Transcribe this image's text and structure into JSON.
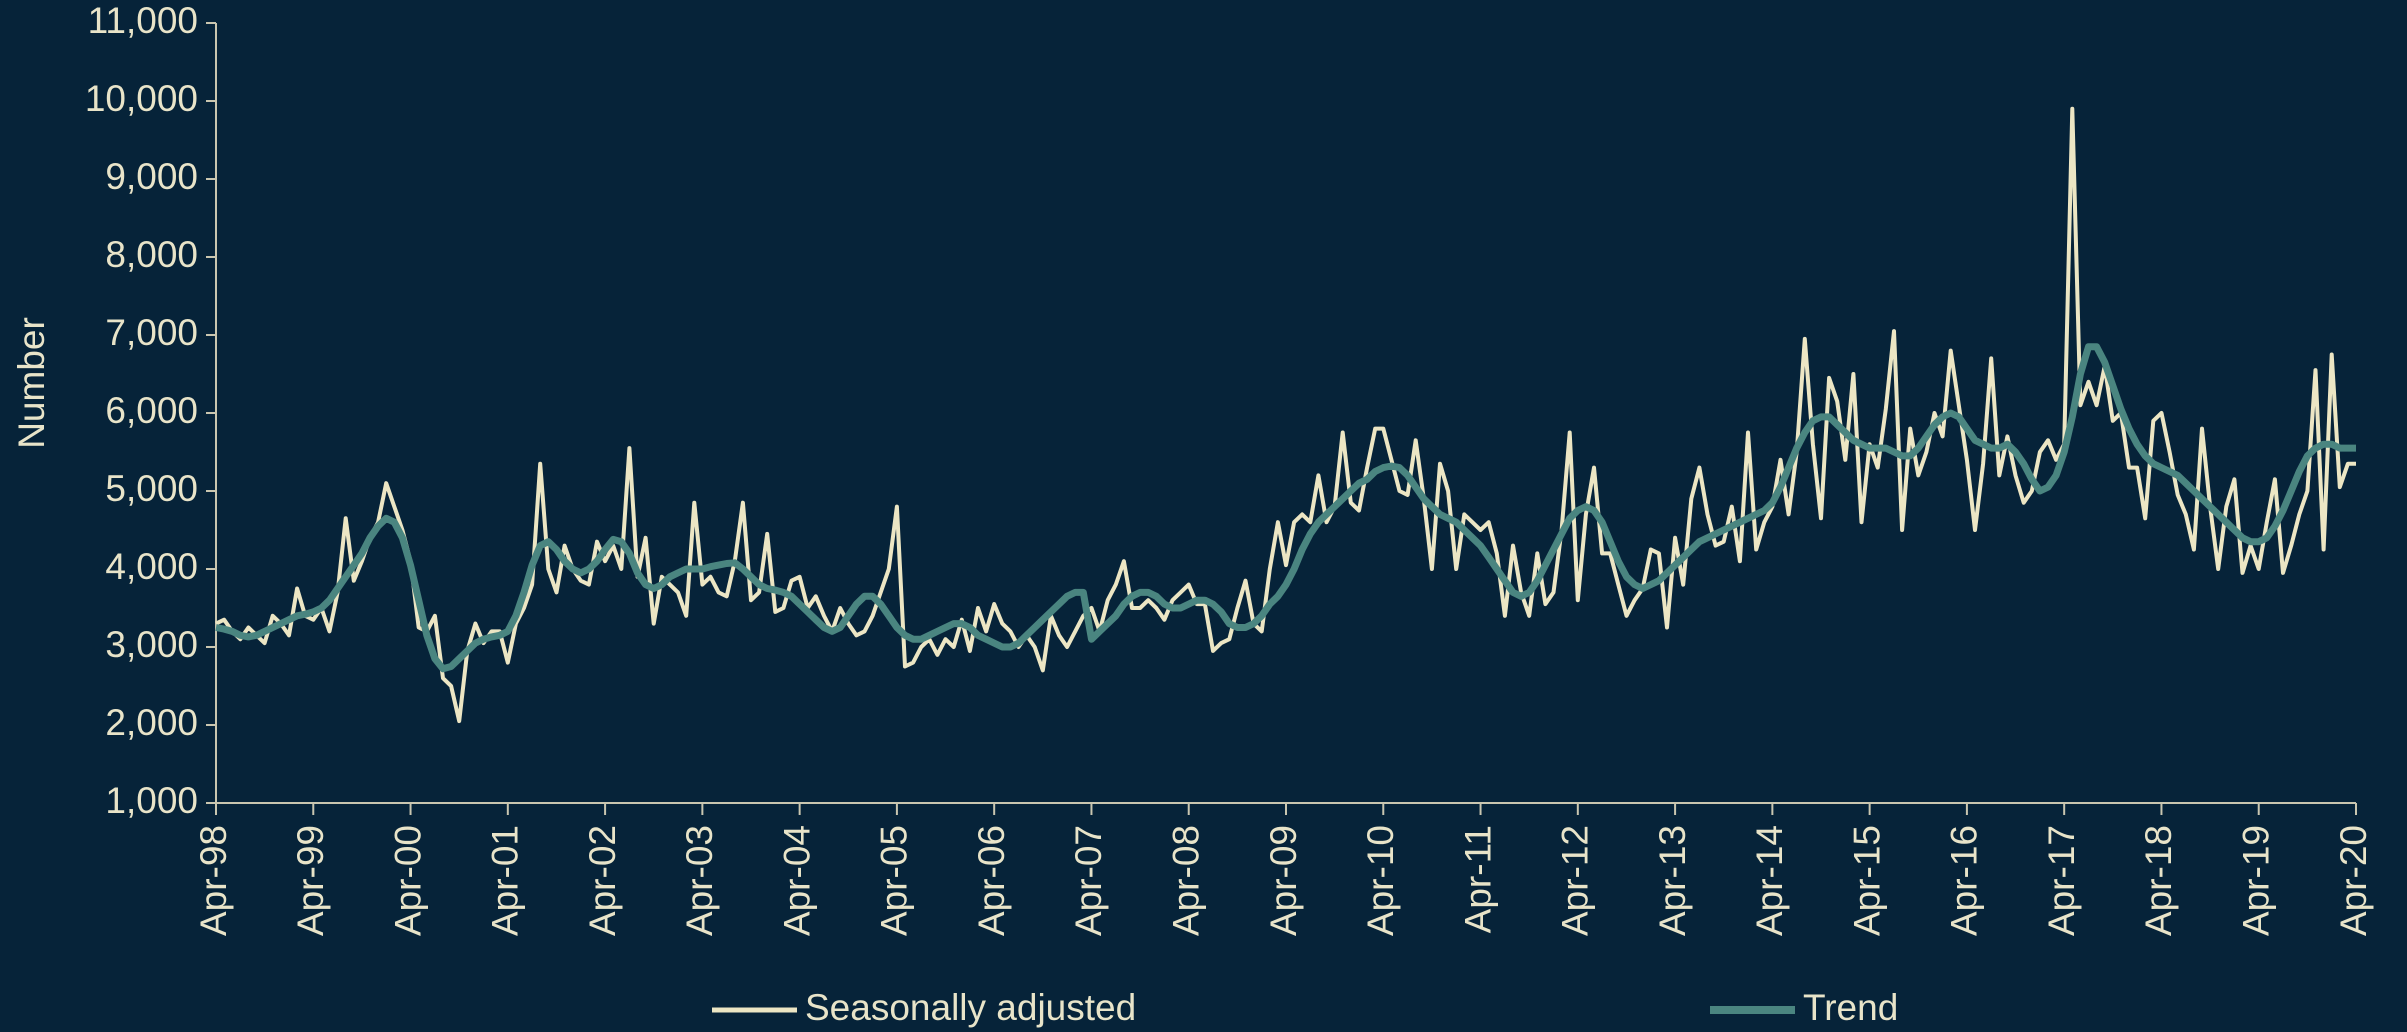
{
  "chart_data": {
    "type": "line",
    "y_label": "Number",
    "categories": [
      "Apr-98",
      null,
      null,
      null,
      null,
      null,
      null,
      null,
      null,
      null,
      null,
      null,
      "Apr-99",
      null,
      null,
      null,
      null,
      null,
      null,
      null,
      null,
      null,
      null,
      null,
      "Apr-00",
      null,
      null,
      null,
      null,
      null,
      null,
      null,
      null,
      null,
      null,
      null,
      "Apr-01",
      null,
      null,
      null,
      null,
      null,
      null,
      null,
      null,
      null,
      null,
      null,
      "Apr-02",
      null,
      null,
      null,
      null,
      null,
      null,
      null,
      null,
      null,
      null,
      null,
      "Apr-03",
      null,
      null,
      null,
      null,
      null,
      null,
      null,
      null,
      null,
      null,
      null,
      "Apr-04",
      null,
      null,
      null,
      null,
      null,
      null,
      null,
      null,
      null,
      null,
      null,
      "Apr-05",
      null,
      null,
      null,
      null,
      null,
      null,
      null,
      null,
      null,
      null,
      null,
      "Apr-06",
      null,
      null,
      null,
      null,
      null,
      null,
      null,
      null,
      null,
      null,
      null,
      "Apr-07",
      null,
      null,
      null,
      null,
      null,
      null,
      null,
      null,
      null,
      null,
      null,
      "Apr-08",
      null,
      null,
      null,
      null,
      null,
      null,
      null,
      null,
      null,
      null,
      null,
      "Apr-09",
      null,
      null,
      null,
      null,
      null,
      null,
      null,
      null,
      null,
      null,
      null,
      "Apr-10",
      null,
      null,
      null,
      null,
      null,
      null,
      null,
      null,
      null,
      null,
      null,
      "Apr-11",
      null,
      null,
      null,
      null,
      null,
      null,
      null,
      null,
      null,
      null,
      null,
      "Apr-12",
      null,
      null,
      null,
      null,
      null,
      null,
      null,
      null,
      null,
      null,
      null,
      "Apr-13",
      null,
      null,
      null,
      null,
      null,
      null,
      null,
      null,
      null,
      null,
      null,
      "Apr-14",
      null,
      null,
      null,
      null,
      null,
      null,
      null,
      null,
      null,
      null,
      null,
      "Apr-15",
      null,
      null,
      null,
      null,
      null,
      null,
      null,
      null,
      null,
      null,
      null,
      "Apr-16",
      null,
      null,
      null,
      null,
      null,
      null,
      null,
      null,
      null,
      null,
      null,
      "Apr-17",
      null,
      null,
      null,
      null,
      null,
      null,
      null,
      null,
      null,
      null,
      null,
      "Apr-18",
      null,
      null,
      null,
      null,
      null,
      null,
      null,
      null,
      null,
      null,
      null,
      "Apr-19",
      null,
      null,
      null,
      null,
      null,
      null,
      null,
      null,
      null,
      null,
      null,
      "Apr-20"
    ],
    "series": [
      {
        "name": "Seasonally adjusted",
        "color": "#ece6c4",
        "values": [
          3300,
          3350,
          3200,
          3100,
          3250,
          3150,
          3050,
          3400,
          3300,
          3150,
          3750,
          3400,
          3350,
          3500,
          3200,
          3700,
          4650,
          3850,
          4100,
          4400,
          4600,
          5100,
          4800,
          4500,
          4100,
          3250,
          3200,
          3400,
          2600,
          2500,
          2050,
          2950,
          3300,
          3050,
          3200,
          3200,
          2800,
          3300,
          3500,
          3800,
          5350,
          4000,
          3700,
          4300,
          4000,
          3850,
          3800,
          4350,
          4100,
          4300,
          4000,
          5550,
          3900,
          4400,
          3300,
          3900,
          3800,
          3700,
          3400,
          4850,
          3800,
          3900,
          3700,
          3650,
          4100,
          4850,
          3600,
          3700,
          4450,
          3450,
          3500,
          3850,
          3900,
          3500,
          3650,
          3400,
          3200,
          3500,
          3300,
          3150,
          3200,
          3400,
          3700,
          4000,
          4800,
          2750,
          2800,
          3000,
          3100,
          2900,
          3100,
          3000,
          3350,
          2950,
          3500,
          3200,
          3550,
          3300,
          3200,
          3000,
          3150,
          3000,
          2700,
          3400,
          3150,
          3000,
          3200,
          3400,
          3500,
          3200,
          3600,
          3800,
          4100,
          3500,
          3500,
          3600,
          3500,
          3350,
          3600,
          3700,
          3800,
          3550,
          3550,
          2950,
          3050,
          3100,
          3500,
          3850,
          3300,
          3200,
          4000,
          4600,
          4050,
          4600,
          4700,
          4600,
          5200,
          4600,
          4800,
          5750,
          4850,
          4750,
          5300,
          5800,
          5800,
          5400,
          5000,
          4950,
          5650,
          4900,
          4000,
          5350,
          5000,
          4000,
          4700,
          4600,
          4500,
          4600,
          4200,
          3400,
          4300,
          3700,
          3400,
          4200,
          3550,
          3700,
          4500,
          5750,
          3600,
          4700,
          5300,
          4200,
          4200,
          3800,
          3400,
          3600,
          3750,
          4250,
          4200,
          3250,
          4400,
          3800,
          4900,
          5300,
          4700,
          4300,
          4350,
          4800,
          4100,
          5750,
          4250,
          4600,
          4800,
          5400,
          4700,
          5500,
          6950,
          5600,
          4650,
          6450,
          6150,
          5400,
          6500,
          4600,
          5600,
          5300,
          6050,
          7050,
          4500,
          5800,
          5200,
          5500,
          6000,
          5700,
          6800,
          6100,
          5400,
          4500,
          5350,
          6700,
          5200,
          5700,
          5200,
          4850,
          5000,
          5500,
          5650,
          5400,
          5600,
          9900,
          6100,
          6400,
          6100,
          6600,
          5900,
          6000,
          5300,
          5300,
          4650,
          5900,
          6000,
          5500,
          4950,
          4700,
          4250,
          5800,
          4800,
          4000,
          4800,
          5150,
          3950,
          4300,
          4000,
          4600,
          5150,
          3950,
          4300,
          4700,
          5000,
          6550,
          4250,
          6750,
          5050,
          5350,
          5350
        ]
      },
      {
        "name": "Trend",
        "color": "#4a8580",
        "values": [
          3250,
          3230,
          3200,
          3150,
          3130,
          3150,
          3200,
          3250,
          3300,
          3350,
          3400,
          3420,
          3450,
          3500,
          3600,
          3750,
          3900,
          4050,
          4200,
          4400,
          4550,
          4650,
          4600,
          4400,
          4050,
          3600,
          3150,
          2850,
          2720,
          2750,
          2850,
          2950,
          3050,
          3100,
          3130,
          3150,
          3200,
          3400,
          3700,
          4050,
          4300,
          4350,
          4250,
          4100,
          4000,
          3950,
          4000,
          4100,
          4250,
          4380,
          4350,
          4200,
          3950,
          3800,
          3750,
          3800,
          3900,
          3950,
          4000,
          4000,
          4000,
          4030,
          4050,
          4070,
          4080,
          4000,
          3900,
          3800,
          3750,
          3730,
          3700,
          3650,
          3550,
          3450,
          3350,
          3250,
          3200,
          3250,
          3400,
          3550,
          3650,
          3650,
          3550,
          3400,
          3250,
          3150,
          3100,
          3100,
          3150,
          3200,
          3250,
          3300,
          3300,
          3250,
          3150,
          3100,
          3050,
          3000,
          3000,
          3050,
          3150,
          3250,
          3350,
          3450,
          3550,
          3650,
          3700,
          3700,
          3100,
          3200,
          3300,
          3400,
          3550,
          3650,
          3700,
          3700,
          3650,
          3550,
          3500,
          3500,
          3550,
          3600,
          3600,
          3550,
          3450,
          3300,
          3250,
          3250,
          3300,
          3400,
          3550,
          3650,
          3800,
          4000,
          4250,
          4450,
          4600,
          4700,
          4800,
          4900,
          5000,
          5100,
          5150,
          5250,
          5300,
          5320,
          5300,
          5200,
          5050,
          4900,
          4800,
          4700,
          4650,
          4600,
          4500,
          4400,
          4300,
          4150,
          4000,
          3850,
          3700,
          3650,
          3700,
          3850,
          4050,
          4250,
          4450,
          4650,
          4750,
          4800,
          4750,
          4600,
          4350,
          4100,
          3900,
          3800,
          3750,
          3800,
          3850,
          3950,
          4050,
          4150,
          4250,
          4350,
          4400,
          4450,
          4500,
          4550,
          4600,
          4650,
          4700,
          4750,
          4850,
          5050,
          5300,
          5550,
          5750,
          5900,
          5950,
          5950,
          5850,
          5750,
          5650,
          5600,
          5550,
          5550,
          5550,
          5500,
          5450,
          5450,
          5550,
          5700,
          5850,
          5950,
          6000,
          5950,
          5800,
          5650,
          5600,
          5550,
          5550,
          5600,
          5500,
          5350,
          5150,
          5000,
          5050,
          5200,
          5500,
          5950,
          6500,
          6850,
          6850,
          6650,
          6350,
          6050,
          5800,
          5600,
          5450,
          5350,
          5300,
          5250,
          5200,
          5100,
          5000,
          4900,
          4800,
          4700,
          4600,
          4500,
          4400,
          4350,
          4350,
          4400,
          4550,
          4750,
          5000,
          5250,
          5450,
          5550,
          5600,
          5600,
          5550,
          5550,
          5550
        ]
      }
    ],
    "ylim": [
      1000,
      11000
    ],
    "yticks": [
      {
        "value": 1000,
        "label": "1,000"
      },
      {
        "value": 2000,
        "label": "2,000"
      },
      {
        "value": 3000,
        "label": "3,000"
      },
      {
        "value": 4000,
        "label": "4,000"
      },
      {
        "value": 5000,
        "label": "5,000"
      },
      {
        "value": 6000,
        "label": "6,000"
      },
      {
        "value": 7000,
        "label": "7,000"
      },
      {
        "value": 8000,
        "label": "8,000"
      },
      {
        "value": 9000,
        "label": "9,000"
      },
      {
        "value": 10000,
        "label": "10,000"
      },
      {
        "value": 11000,
        "label": "11,000"
      }
    ],
    "grid": false
  }
}
